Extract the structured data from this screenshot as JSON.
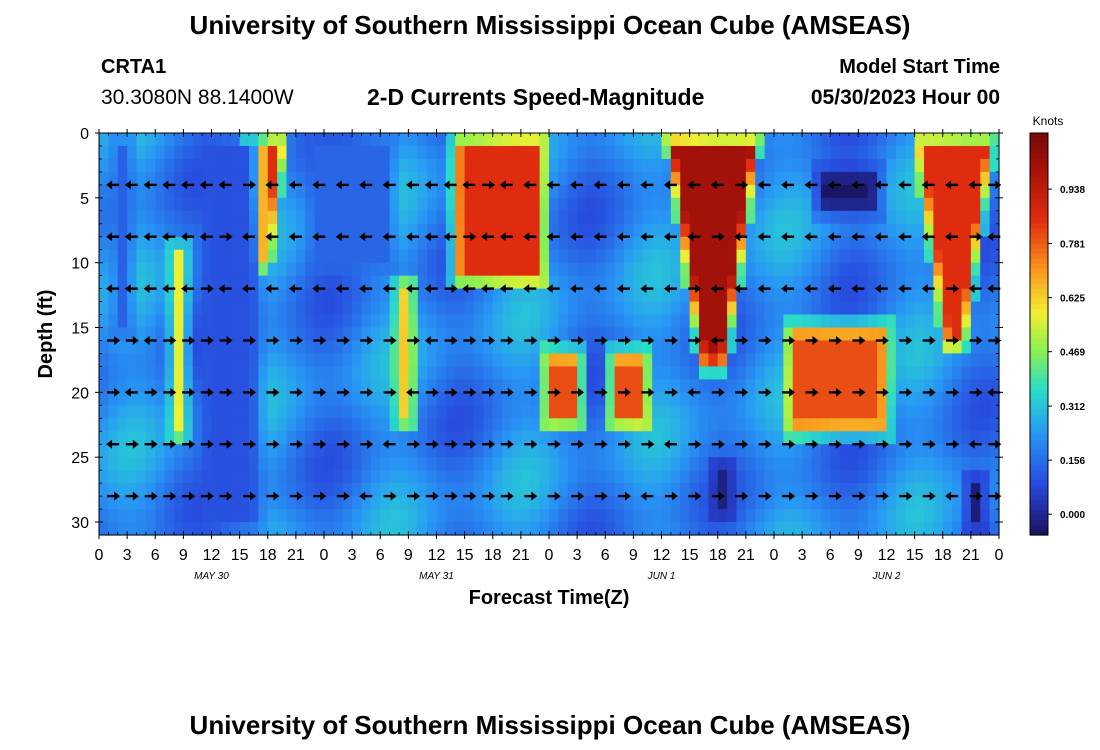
{
  "header": {
    "title": "University of Southern Mississippi Ocean Cube (AMSEAS)",
    "station": "CRTA1",
    "coords": "30.3080N  88.1400W",
    "subtitle": "2-D Currents Speed-Magnitude",
    "model_label": "Model Start Time",
    "model_time": "05/30/2023 Hour 00"
  },
  "footer": {
    "title": "University of Southern Mississippi Ocean Cube (AMSEAS)"
  },
  "chart_data": {
    "type": "heatmap",
    "title": "2-D Currents Speed-Magnitude",
    "xlabel": "Forecast Time(Z)",
    "ylabel": "Depth (ft)",
    "x_range": [
      0,
      96
    ],
    "ylim": [
      0,
      31
    ],
    "y_ticks": [
      "0",
      "5",
      "10",
      "15",
      "20",
      "25",
      "30"
    ],
    "x_tick_labels": [
      "0",
      "3",
      "6",
      "9",
      "12",
      "15",
      "18",
      "21",
      "0",
      "3",
      "6",
      "9",
      "12",
      "15",
      "18",
      "21",
      "0",
      "3",
      "6",
      "9",
      "12",
      "15",
      "18",
      "21",
      "0",
      "3",
      "6",
      "9",
      "12",
      "15",
      "18",
      "21",
      "0"
    ],
    "date_labels": [
      {
        "text": "MAY 30",
        "hour": 12
      },
      {
        "text": "MAY 31",
        "hour": 36
      },
      {
        "text": "JUN 1",
        "hour": 60
      },
      {
        "text": "JUN 2",
        "hour": 84
      }
    ],
    "colorbar": {
      "unit": "Knots",
      "min": -0.06,
      "max": 1.1,
      "ticks": [
        "0.938",
        "0.781",
        "0.625",
        "0.469",
        "0.312",
        "0.156",
        "0.000"
      ],
      "tick_values": [
        0.938,
        0.781,
        0.625,
        0.469,
        0.312,
        0.156,
        0.0
      ]
    },
    "arrow_depths_ft": [
      4,
      8,
      12,
      16,
      20,
      24,
      28
    ],
    "arrow_hours": [
      1.5,
      3.5,
      5.5,
      7.5,
      9.5,
      11.5,
      13.5,
      16,
      18.5,
      21,
      23.5,
      26,
      28.5,
      31,
      33.5,
      35.5,
      37.5,
      39.5,
      41.5,
      43.5,
      46,
      48.5,
      51,
      53.5,
      56,
      58.5,
      61,
      63.5,
      66,
      68.5,
      71,
      73.5,
      76,
      78.5,
      81,
      83.5,
      86,
      88.5,
      91,
      93.5,
      95.5
    ],
    "speed_features": [
      {
        "hour_start": 14.5,
        "hour_end": 20.5,
        "depth_top": 0,
        "depth_bottom": 11,
        "peak": 0.85,
        "shape": "funnel"
      },
      {
        "hour_start": 37.5,
        "hour_end": 48,
        "depth_top": 0,
        "depth_bottom": 12,
        "peak": 0.85,
        "shape": "block"
      },
      {
        "hour_start": 60,
        "hour_end": 71,
        "depth_top": 0,
        "depth_bottom": 18.5,
        "peak": 1.0,
        "shape": "funnel"
      },
      {
        "hour_start": 86.5,
        "hour_end": 96,
        "depth_top": 0,
        "depth_bottom": 17,
        "peak": 0.85,
        "shape": "funnel"
      },
      {
        "hour_start": 7.5,
        "hour_end": 9.5,
        "depth_top": 8.5,
        "depth_bottom": 24,
        "peak": 0.65,
        "shape": "band"
      },
      {
        "hour_start": 31.5,
        "hour_end": 34,
        "depth_top": 11,
        "depth_bottom": 23,
        "peak": 0.7,
        "shape": "band"
      },
      {
        "hour_start": 47,
        "hour_end": 52,
        "depth_top": 16.5,
        "depth_bottom": 23,
        "peak": 0.8,
        "shape": "block"
      },
      {
        "hour_start": 54,
        "hour_end": 59,
        "depth_top": 16.5,
        "depth_bottom": 23,
        "peak": 0.8,
        "shape": "block"
      },
      {
        "hour_start": 73,
        "hour_end": 84.5,
        "depth_top": 14.5,
        "depth_bottom": 23.5,
        "peak": 0.8,
        "shape": "block"
      },
      {
        "hour_start": 76,
        "hour_end": 83.5,
        "depth_top": 2.5,
        "depth_bottom": 6.5,
        "peak": -0.05,
        "shape": "block"
      },
      {
        "hour_start": 65,
        "hour_end": 68,
        "depth_top": 25,
        "depth_bottom": 30,
        "peak": -0.02,
        "shape": "band"
      },
      {
        "hour_start": 92,
        "hour_end": 95,
        "depth_top": 26,
        "depth_bottom": 31,
        "peak": -0.03,
        "shape": "band"
      },
      {
        "hour_start": 10.5,
        "hour_end": 17.5,
        "depth_top": 0,
        "depth_bottom": 31,
        "peak": 0.1,
        "shape": "band"
      },
      {
        "hour_start": 22,
        "hour_end": 32,
        "depth_top": 0,
        "depth_bottom": 11,
        "peak": 0.14,
        "shape": "block"
      },
      {
        "hour_start": 1,
        "hour_end": 4,
        "depth_top": 0,
        "depth_bottom": 16,
        "peak": 0.13,
        "shape": "block"
      }
    ]
  }
}
